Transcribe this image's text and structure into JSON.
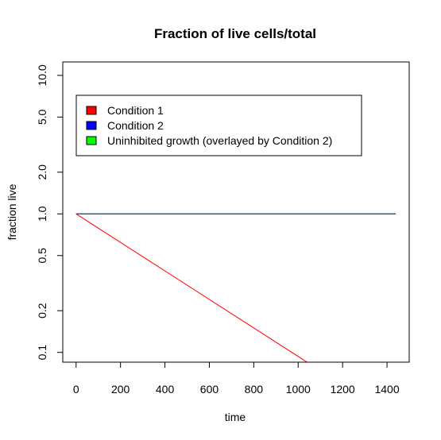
{
  "chart_data": {
    "type": "line",
    "title": "Fraction of live cells/total",
    "xlabel": "time",
    "ylabel": "fraction live",
    "x_scale": "linear",
    "y_scale": "log",
    "xlim": [
      -60,
      1500
    ],
    "ylim": [
      0.085,
      12.5
    ],
    "x_ticks": [
      0,
      200,
      400,
      600,
      800,
      1000,
      1200,
      1400
    ],
    "x_tick_labels": [
      "0",
      "200",
      "400",
      "600",
      "800",
      "1000",
      "1200",
      "1400"
    ],
    "y_ticks": [
      0.1,
      0.2,
      0.5,
      1.0,
      2.0,
      5.0,
      10.0
    ],
    "y_tick_labels": [
      "0.1",
      "0.2",
      "0.5",
      "1.0",
      "2.0",
      "5.0",
      "10.0"
    ],
    "grid": false,
    "legend_position": "top-left",
    "series": [
      {
        "name": "Condition 1",
        "color": "#ff0000",
        "x": [
          0,
          1040
        ],
        "y": [
          1.0,
          0.085
        ]
      },
      {
        "name": "Condition 2",
        "color": "#0000ff",
        "x": [
          0,
          1440
        ],
        "y": [
          1.0,
          1.0
        ]
      },
      {
        "name": "Uninhibited growth (overlayed by Condition 2)",
        "color": "#00ff00",
        "x": [
          0,
          1440
        ],
        "y": [
          1.0,
          1.0
        ]
      }
    ]
  }
}
